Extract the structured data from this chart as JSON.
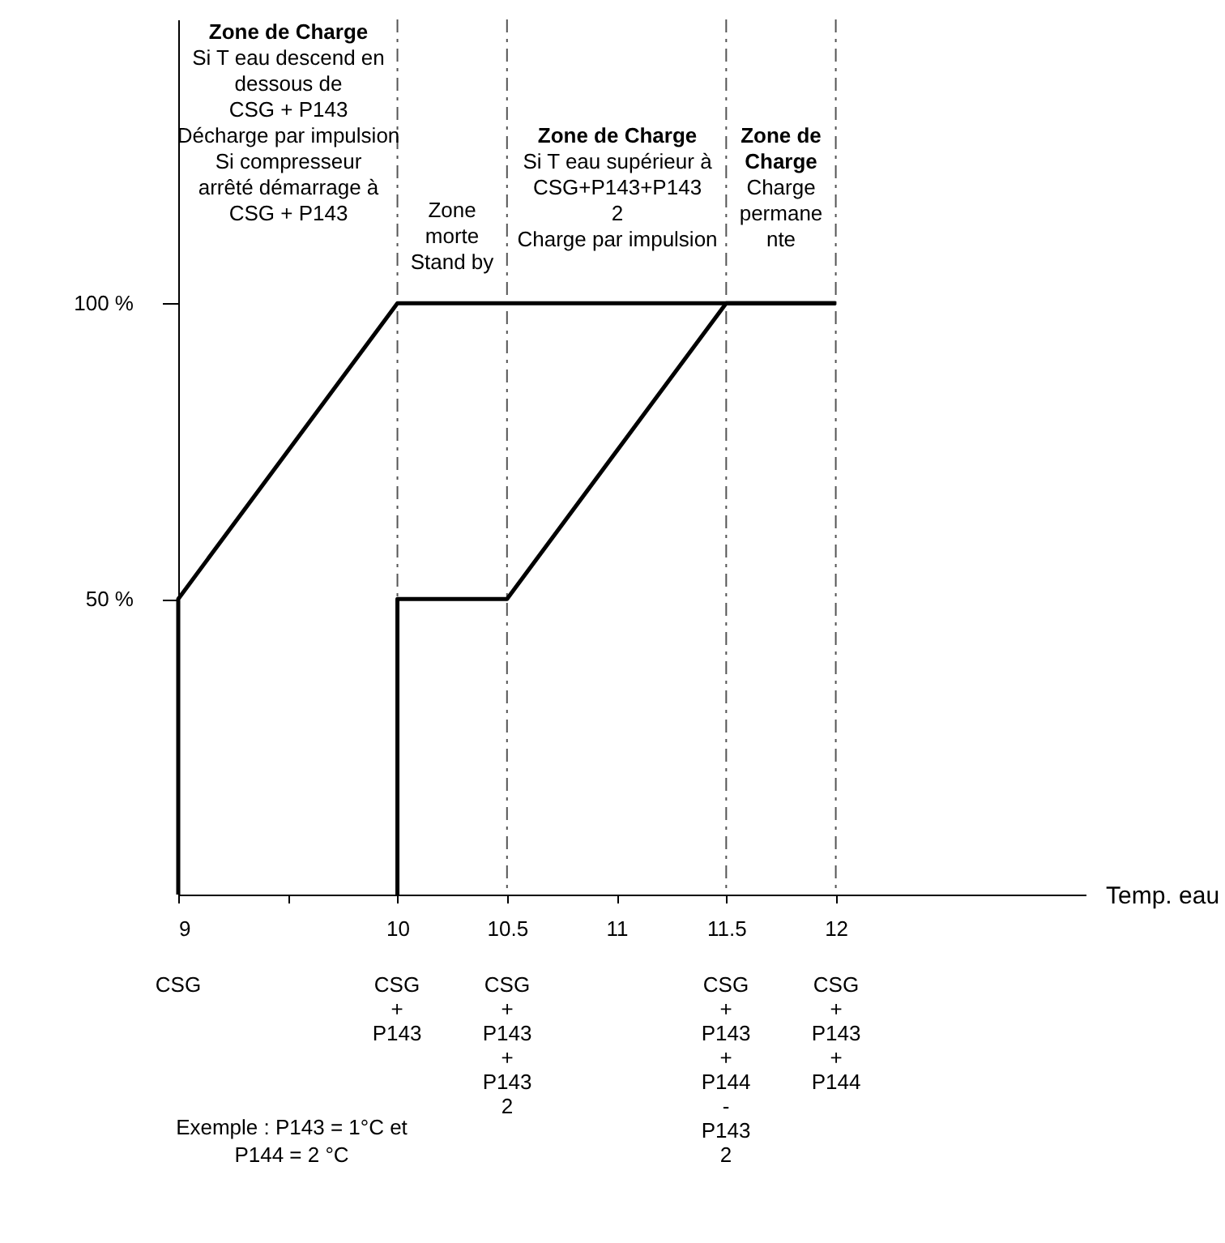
{
  "chart_data": {
    "type": "line",
    "xlabel": "Temp. eau",
    "series": [
      {
        "color": "#000000",
        "x": [
          10,
          10,
          10.5,
          11.5,
          12
        ],
        "values": [
          0,
          50,
          50,
          100,
          100
        ]
      },
      {
        "color": "#000000",
        "x": [
          12,
          10,
          9,
          9
        ],
        "values": [
          100,
          100,
          50,
          0
        ]
      }
    ],
    "xlim": [
      9,
      13.14
    ],
    "ylim": [
      0,
      148
    ],
    "xticks": [
      9,
      {
        "value": 9.5,
        "label": null
      },
      10,
      10.5,
      11,
      11.5,
      12
    ],
    "yticks": [
      {
        "value": 50,
        "label": "50 %"
      },
      {
        "value": 100,
        "label": "100 %"
      }
    ],
    "grid": false,
    "marker": "none",
    "line_style": "solid",
    "ref_lines": [
      {
        "axis": "x",
        "value": 10,
        "line_style": "dashed",
        "color": "#555555"
      },
      {
        "axis": "x",
        "value": 10.5,
        "line_style": "dashed",
        "color": "#555555"
      },
      {
        "axis": "x",
        "value": 11.5,
        "line_style": "dashed",
        "color": "#555555"
      },
      {
        "axis": "x",
        "value": 12,
        "line_style": "dashed",
        "color": "#555555"
      }
    ],
    "annotations": [
      "Zone de Charge\nSi T eau descend en\ndessous de\nCSG + P143\nDécharge par impulsion\nSi compresseur\narrêté démarrage à\nCSG + P143",
      "Zone\nmorte\nStand by",
      "Zone de Charge\nSi T eau supérieur à\nCSG+P143+P143\n2\nCharge par impulsion",
      "Zone de\nCharge\nCharge\npermane\nnte",
      "CSG",
      "CSG\n+\nP143",
      "CSG\n+\nP143\n+\nP143\n2",
      "CSG\n+\nP143\n+\nP144\n-\nP143\n2",
      "CSG\n+\nP143\n+\nP144",
      "Exemple : P143 = 1°C et\nP144 = 2 °C"
    ]
  }
}
